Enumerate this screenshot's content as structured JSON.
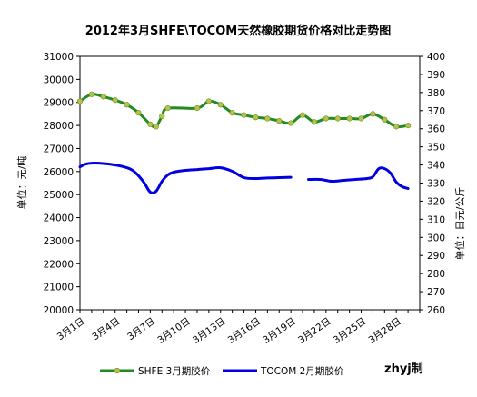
{
  "chart_data": {
    "type": "line",
    "title": "2012年3月SHFE\\TOCOM天然橡胶期货价格对比走势图",
    "ylabel_left": "单位：元/吨",
    "ylabel_right": "单位：日元/公斤",
    "y_left_range": [
      20000,
      31000
    ],
    "y_left_ticks": [
      "20000",
      "21000",
      "22000",
      "23000",
      "24000",
      "25000",
      "26000",
      "27000",
      "28000",
      "29000",
      "30000",
      "31000"
    ],
    "y_right_range": [
      260,
      400
    ],
    "y_right_ticks": [
      "260",
      "270",
      "280",
      "290",
      "300",
      "310",
      "320",
      "330",
      "340",
      "350",
      "360",
      "370",
      "380",
      "390",
      "400"
    ],
    "x_range": [
      1,
      30
    ],
    "x_tick_labels": [
      {
        "x": 1,
        "label": "3月1日"
      },
      {
        "x": 4,
        "label": "3月4日"
      },
      {
        "x": 7,
        "label": "3月7日"
      },
      {
        "x": 10,
        "label": "3月10日"
      },
      {
        "x": 13,
        "label": "3月13日"
      },
      {
        "x": 16,
        "label": "3月16日"
      },
      {
        "x": 19,
        "label": "3月19日"
      },
      {
        "x": 22,
        "label": "3月22日"
      },
      {
        "x": 25,
        "label": "3月25日"
      },
      {
        "x": 28,
        "label": "3月28日"
      }
    ],
    "grid": false,
    "legend_position": "bottom",
    "series": [
      {
        "name": "SHFE 3月期胶价",
        "axis": "left",
        "color": "#228b22",
        "marker_color": "#b5c34a",
        "points": [
          [
            1,
            29050
          ],
          [
            2,
            29350
          ],
          [
            3,
            29250
          ],
          [
            4,
            29100
          ],
          [
            5,
            28900
          ],
          [
            6,
            28550
          ],
          [
            7,
            28050
          ],
          [
            7.5,
            27950
          ],
          [
            8,
            28400
          ],
          [
            8.5,
            28750
          ],
          [
            11,
            28750
          ],
          [
            12,
            29050
          ],
          [
            13,
            28900
          ],
          [
            14,
            28550
          ],
          [
            15,
            28450
          ],
          [
            16,
            28350
          ],
          [
            17,
            28300
          ],
          [
            18,
            28200
          ],
          [
            19,
            28100
          ],
          [
            20,
            28450
          ],
          [
            21,
            28150
          ],
          [
            22,
            28300
          ],
          [
            23,
            28300
          ],
          [
            24,
            28300
          ],
          [
            25,
            28300
          ],
          [
            26,
            28500
          ],
          [
            27,
            28250
          ],
          [
            28,
            27950
          ],
          [
            29,
            28000
          ]
        ]
      },
      {
        "name": "TOCOM 2月期胶价",
        "axis": "right",
        "color": "#0000e0",
        "segments": [
          [
            [
              1,
              339
            ],
            [
              1.5,
              340.5
            ],
            [
              2,
              341
            ],
            [
              3,
              340.8
            ],
            [
              4,
              340
            ],
            [
              5,
              338.5
            ],
            [
              5.5,
              337
            ],
            [
              6,
              334
            ],
            [
              6.5,
              330
            ],
            [
              7,
              325
            ],
            [
              7.5,
              325.5
            ],
            [
              8,
              331
            ],
            [
              8.5,
              334.5
            ],
            [
              9,
              336
            ],
            [
              10,
              337
            ],
            [
              11,
              337.5
            ],
            [
              12,
              338
            ],
            [
              13,
              338.5
            ],
            [
              14,
              336.5
            ],
            [
              15,
              333
            ],
            [
              16,
              332.5
            ],
            [
              17,
              332.8
            ],
            [
              18,
              333
            ],
            [
              19,
              333.2
            ]
          ],
          [
            [
              20.5,
              332
            ],
            [
              21.5,
              332
            ],
            [
              22.5,
              331
            ],
            [
              23.5,
              331.5
            ],
            [
              24.5,
              332
            ],
            [
              25.5,
              332.5
            ],
            [
              26,
              333.5
            ],
            [
              26.5,
              338
            ],
            [
              27,
              338
            ],
            [
              27.5,
              335.5
            ],
            [
              28,
              330.5
            ],
            [
              28.5,
              328
            ],
            [
              29,
              327
            ]
          ]
        ]
      }
    ],
    "legend": [
      {
        "label": "SHFE 3月期胶价",
        "color": "#228b22",
        "marker": true
      },
      {
        "label": "TOCOM 2月期胶价",
        "color": "#0000e0",
        "marker": false
      }
    ],
    "signature": "zhyj制"
  }
}
